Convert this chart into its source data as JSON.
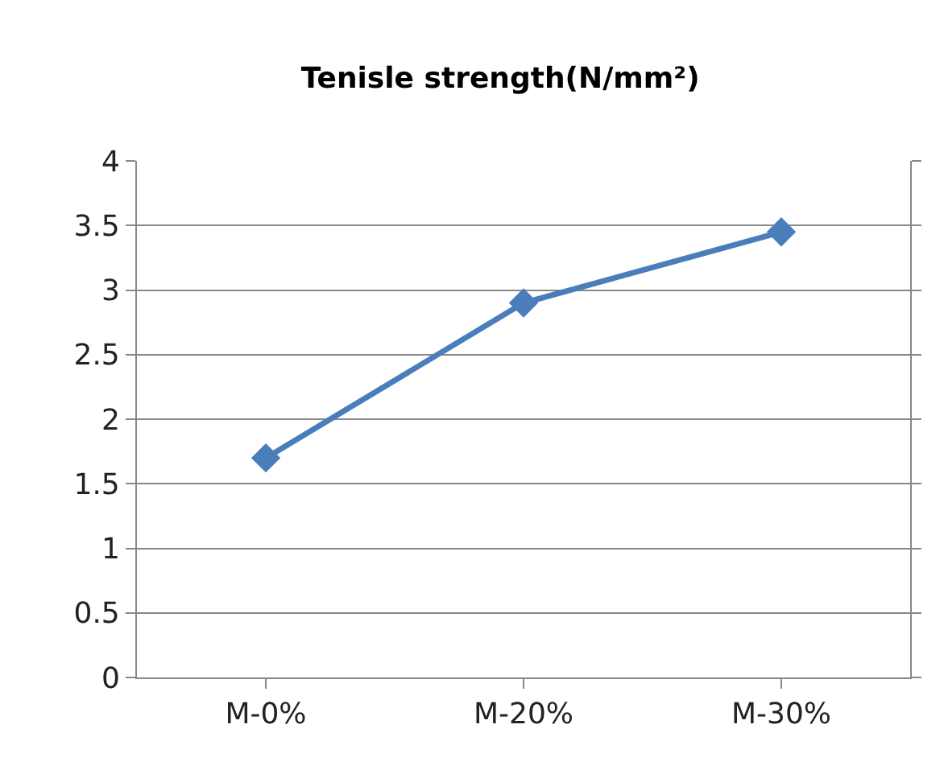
{
  "chart_data": {
    "type": "line",
    "title": "Tenisle strength(N/mm²)",
    "categories": [
      "M-0%",
      "M-20%",
      "M-30%"
    ],
    "series": [
      {
        "color": "#4a7ebb",
        "values": [
          1.7,
          2.9,
          3.45
        ]
      }
    ],
    "ylim": [
      0,
      4
    ],
    "yticks": [
      0,
      0.5,
      1,
      1.5,
      2,
      2.5,
      3,
      3.5,
      4
    ],
    "grid": "y",
    "marker": "diamond",
    "line_style": "solid"
  }
}
